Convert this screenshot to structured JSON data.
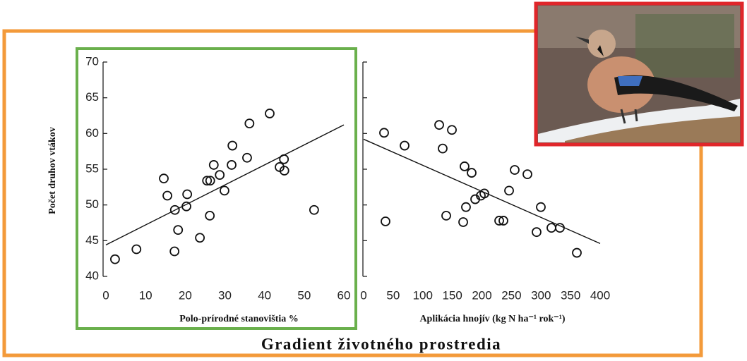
{
  "caption": "Gradient životného prostredia",
  "chart_data": [
    {
      "type": "scatter",
      "ylabel": "Počet druhov vtákov",
      "xlabel": "Polo-prírodné stanovištia  %",
      "x": [
        2.3,
        7.7,
        14.6,
        15.5,
        17.4,
        18.2,
        17.3,
        20.5,
        20.3,
        23.7,
        25.5,
        26.3,
        26.2,
        27.2,
        28.7,
        29.9,
        31.7,
        31.9,
        35.6,
        36.2,
        41.3,
        43.8,
        44.9,
        45.0,
        52.5
      ],
      "values": [
        42.4,
        43.8,
        53.7,
        51.3,
        49.3,
        46.5,
        43.5,
        51.5,
        49.8,
        45.4,
        53.4,
        53.4,
        48.5,
        55.6,
        54.2,
        52.0,
        55.6,
        58.3,
        56.6,
        61.4,
        62.8,
        55.3,
        56.4,
        54.8,
        49.3
      ],
      "trendline": {
        "x": [
          0,
          60
        ],
        "y": [
          44.4,
          61.2
        ]
      },
      "xlim": [
        0,
        60
      ],
      "xticks": [
        0,
        10,
        20,
        30,
        40,
        50,
        60
      ],
      "ylim": [
        40,
        70
      ],
      "yticks": [
        40,
        45,
        50,
        55,
        60,
        65,
        70
      ]
    },
    {
      "type": "scatter",
      "xlabel": "Aplikácia hnojív (kg N ha⁻¹ rok⁻¹)",
      "x": [
        34.6,
        37.0,
        69.3,
        127.8,
        133.7,
        139.7,
        149.3,
        168.4,
        170.7,
        173.1,
        182.7,
        188.7,
        198.2,
        204.2,
        229.3,
        236.4,
        246,
        255.5,
        277,
        292.5,
        299.7,
        317.6,
        331.9,
        360.6
      ],
      "values": [
        60.1,
        47.7,
        58.3,
        61.2,
        57.9,
        48.5,
        60.5,
        47.6,
        55.4,
        49.7,
        54.5,
        50.8,
        51.3,
        51.6,
        47.8,
        47.8,
        52.0,
        54.9,
        54.3,
        46.2,
        49.7,
        46.8,
        46.8,
        43.3
      ],
      "trendline": {
        "x": [
          0,
          400
        ],
        "y": [
          59.2,
          44.6
        ]
      },
      "xlim": [
        0,
        400
      ],
      "xticks": [
        0,
        50,
        100,
        150,
        200,
        250,
        300,
        350,
        400
      ],
      "ylim": [
        40,
        70
      ],
      "yticks": [
        40,
        45,
        50,
        55,
        60,
        65,
        70
      ]
    }
  ]
}
